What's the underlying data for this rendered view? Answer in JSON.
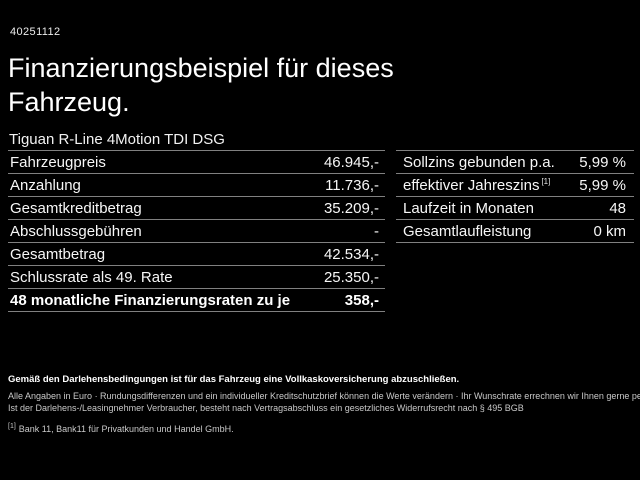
{
  "page": {
    "vehicle_id": "40251112",
    "title_line1": "Finanzierungsbeispiel für dieses",
    "title_line2": "Fahrzeug.",
    "vehicle_name": "Tiguan R-Line 4Motion TDI DSG"
  },
  "left_table": {
    "rows": [
      {
        "label": "Fahrzeugpreis",
        "value": "46.945,-"
      },
      {
        "label": "Anzahlung",
        "value": "11.736,-"
      },
      {
        "label": "Gesamtkreditbetrag",
        "value": "35.209,-"
      },
      {
        "label": "Abschlussgebühren",
        "value": "-"
      },
      {
        "label": "Gesamtbetrag",
        "value": "42.534,-"
      },
      {
        "label": "Schlussrate als 49. Rate",
        "value": "25.350,-"
      },
      {
        "label": "48 monatliche Finanzierungsraten zu je",
        "value": "358,-"
      }
    ]
  },
  "right_table": {
    "rows": [
      {
        "label": "Sollzins gebunden p.a.",
        "value": "5,99 %"
      },
      {
        "label": "effektiver Jahreszins",
        "footnote_marker": "[1]",
        "value": "5,99 %"
      },
      {
        "label": "Laufzeit in Monaten",
        "value": "48"
      },
      {
        "label": "Gesamtlaufleistung",
        "value": "0 km"
      }
    ]
  },
  "footer": {
    "line_bold": "Gemäß den Darlehensbedingungen ist für das Fahrzeug eine Vollkaskoversicherung abzuschließen.",
    "line2": "Alle Angaben in Euro · Rundungsdifferenzen und ein individueller Kreditschutzbrief können die Werte verändern · Ihr Wunschrate errechnen wir Ihnen gerne persönlich",
    "line3": "Ist der Darlehens-/Leasingnehmer Verbraucher, besteht nach Vertragsabschluss ein gesetzliches Widerrufsrecht nach § 495 BGB",
    "footnote_marker": "[1]",
    "footnote_text": "Bank 11, Bank11 für Privatkunden und Handel GmbH."
  },
  "colors": {
    "background": "#000000",
    "text": "#ffffff",
    "secondary_text": "#c9c9c9",
    "divider": "#808080"
  }
}
